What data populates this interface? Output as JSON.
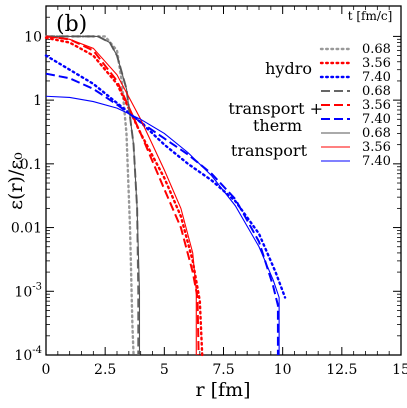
{
  "chart_data": {
    "type": "line",
    "panel_label": "(b)",
    "xlabel": "r [fm]",
    "ylabel": "ε(r)/ε₀",
    "xlim": [
      0,
      15
    ],
    "ylim": [
      0.0001,
      30
    ],
    "y_scale": "log",
    "grid": false,
    "legend_title": "t [fm/c]",
    "legend_position": "top-right",
    "x_ticks": [
      0,
      2.5,
      5,
      7.5,
      10,
      12.5,
      15
    ],
    "x_tick_labels": [
      "0",
      "2.5",
      "5",
      "7.5",
      "10",
      "12.5",
      "15"
    ],
    "y_ticks": [
      10,
      1,
      0.1,
      0.01,
      0.001,
      0.0001
    ],
    "y_tick_labels": [
      {
        "base": "10",
        "exp": ""
      },
      {
        "base": "1",
        "exp": ""
      },
      {
        "base": "0.1",
        "exp": ""
      },
      {
        "base": "0.01",
        "exp": ""
      },
      {
        "base": "10",
        "exp": "-3"
      },
      {
        "base": "10",
        "exp": "-4"
      }
    ],
    "groups": [
      {
        "label": "hydro",
        "style": "dotted"
      },
      {
        "label": "transport + therm",
        "label_lines": [
          "transport +",
          "therm"
        ],
        "style": "dashed"
      },
      {
        "label": "transport",
        "style": "solid"
      }
    ],
    "times": [
      "0.68",
      "3.56",
      "7.40"
    ],
    "colors": {
      "0.68": "#808080",
      "3.56": "#ff0000",
      "7.40": "#0000ff",
      "0.68_dashed": "#555555"
    },
    "series": [
      {
        "group": "hydro",
        "time": "0.68",
        "style": "dotted",
        "color": "#999999",
        "points": [
          [
            0,
            10
          ],
          [
            2.5,
            10
          ],
          [
            3.0,
            6
          ],
          [
            3.2,
            2
          ],
          [
            3.4,
            0.3
          ],
          [
            3.55,
            0.01
          ],
          [
            3.65,
            0.0003
          ],
          [
            3.7,
            0.0001
          ]
        ]
      },
      {
        "group": "hydro",
        "time": "3.56",
        "style": "dotted",
        "color": "#ff0000",
        "points": [
          [
            0,
            9.5
          ],
          [
            1,
            8
          ],
          [
            2,
            5
          ],
          [
            3,
            1.8
          ],
          [
            4,
            0.3
          ],
          [
            5,
            0.06
          ],
          [
            5.7,
            0.015
          ],
          [
            6.2,
            0.003
          ],
          [
            6.5,
            0.0007
          ],
          [
            6.6,
            0.0001
          ]
        ]
      },
      {
        "group": "hydro",
        "time": "7.40",
        "style": "dotted",
        "color": "#0000ff",
        "points": [
          [
            0,
            5
          ],
          [
            1,
            3
          ],
          [
            2,
            1.8
          ],
          [
            3,
            0.9
          ],
          [
            4,
            0.45
          ],
          [
            5,
            0.2
          ],
          [
            6,
            0.1
          ],
          [
            7,
            0.055
          ],
          [
            8,
            0.026
          ],
          [
            9,
            0.008
          ],
          [
            9.7,
            0.002
          ],
          [
            10.1,
            0.0008
          ]
        ]
      },
      {
        "group": "transport + therm",
        "time": "0.68",
        "style": "dashed",
        "color": "#666666",
        "points": [
          [
            0,
            10
          ],
          [
            2.2,
            10
          ],
          [
            2.7,
            8
          ],
          [
            3.0,
            5
          ],
          [
            3.4,
            1.5
          ],
          [
            3.7,
            0.2
          ],
          [
            3.85,
            0.02
          ],
          [
            3.9,
            0.001
          ],
          [
            3.9,
            0.0001
          ]
        ]
      },
      {
        "group": "transport + therm",
        "time": "3.56",
        "style": "dashed",
        "color": "#ff0000",
        "points": [
          [
            0,
            10
          ],
          [
            1,
            9
          ],
          [
            2,
            6
          ],
          [
            3,
            2
          ],
          [
            4,
            0.3
          ],
          [
            5,
            0.04
          ],
          [
            5.7,
            0.01
          ],
          [
            6.2,
            0.002
          ],
          [
            6.4,
            0.0008
          ],
          [
            6.45,
            0.0001
          ]
        ]
      },
      {
        "group": "transport + therm",
        "time": "7.40",
        "style": "dashed",
        "color": "#0000ff",
        "points": [
          [
            0,
            2.6
          ],
          [
            1,
            2.2
          ],
          [
            2,
            1.5
          ],
          [
            3,
            0.85
          ],
          [
            4,
            0.45
          ],
          [
            5,
            0.25
          ],
          [
            6,
            0.14
          ],
          [
            7,
            0.07
          ],
          [
            8,
            0.028
          ],
          [
            9,
            0.006
          ],
          [
            9.6,
            0.0012
          ],
          [
            9.8,
            0.0006
          ],
          [
            9.8,
            0.0001
          ]
        ]
      },
      {
        "group": "transport",
        "time": "0.68",
        "style": "solid",
        "color": "#555555",
        "points": [
          [
            0,
            10
          ],
          [
            2.2,
            10
          ],
          [
            2.7,
            8
          ],
          [
            3.0,
            5
          ],
          [
            3.4,
            1.5
          ],
          [
            3.7,
            0.2
          ],
          [
            3.85,
            0.02
          ],
          [
            3.95,
            0.001
          ],
          [
            3.95,
            0.0001
          ]
        ]
      },
      {
        "group": "transport",
        "time": "3.56",
        "style": "solid",
        "color": "#ff0000",
        "points": [
          [
            0,
            10
          ],
          [
            1,
            9
          ],
          [
            2,
            6.5
          ],
          [
            3,
            2.5
          ],
          [
            4,
            0.5
          ],
          [
            5,
            0.08
          ],
          [
            5.7,
            0.02
          ],
          [
            6.2,
            0.004
          ],
          [
            6.35,
            0.001
          ],
          [
            6.35,
            0.0001
          ]
        ]
      },
      {
        "group": "transport",
        "time": "7.40",
        "style": "solid",
        "color": "#0000ff",
        "points": [
          [
            0,
            1.15
          ],
          [
            1,
            1.1
          ],
          [
            2,
            0.95
          ],
          [
            3,
            0.75
          ],
          [
            4,
            0.5
          ],
          [
            5,
            0.3
          ],
          [
            6,
            0.15
          ],
          [
            7,
            0.065
          ],
          [
            8,
            0.022
          ],
          [
            9,
            0.005
          ],
          [
            9.6,
            0.0015
          ],
          [
            9.85,
            0.0008
          ],
          [
            9.85,
            0.0001
          ]
        ]
      }
    ]
  }
}
